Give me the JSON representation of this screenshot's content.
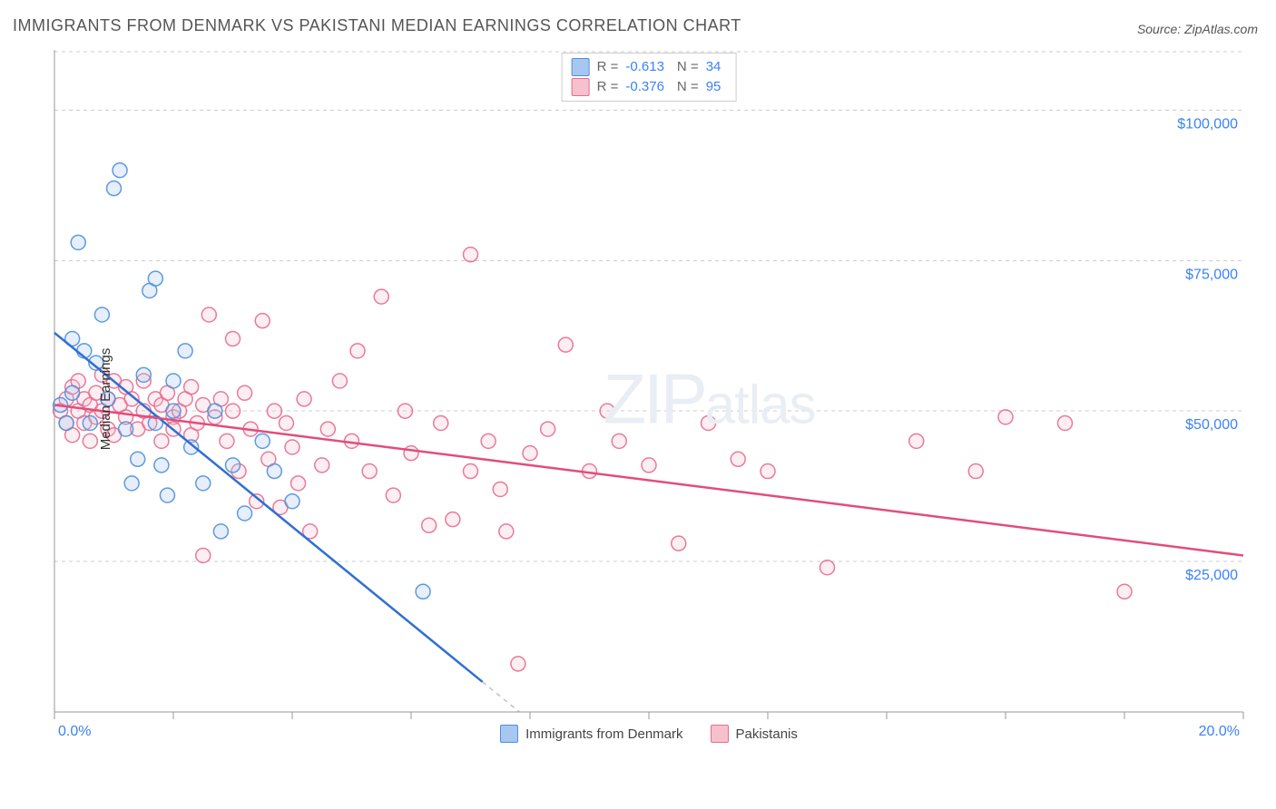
{
  "title": "IMMIGRANTS FROM DENMARK VS PAKISTANI MEDIAN EARNINGS CORRELATION CHART",
  "source": "Source: ZipAtlas.com",
  "ylabel": "Median Earnings",
  "watermark_a": "ZIP",
  "watermark_b": "atlas",
  "chart": {
    "type": "scatter",
    "xlim": [
      0,
      20
    ],
    "ylim": [
      0,
      110000
    ],
    "x_ticks": [
      0,
      2,
      4,
      6,
      8,
      10,
      12,
      14,
      16,
      18,
      20
    ],
    "y_gridlines": [
      25000,
      50000,
      75000,
      100000
    ],
    "y_tick_labels": [
      "$25,000",
      "$50,000",
      "$75,000",
      "$100,000"
    ],
    "x_start_label": "0.0%",
    "x_end_label": "20.0%",
    "background_color": "#ffffff",
    "grid_color": "#cccccc",
    "axis_color": "#999999",
    "tick_label_color": "#3b82f6",
    "marker_radius": 8,
    "series": [
      {
        "name": "Immigrants from Denmark",
        "fill": "#a7c7f0",
        "stroke": "#4d8fdd",
        "r_value": "-0.613",
        "n_value": "34",
        "trend": {
          "x1": 0,
          "y1": 63000,
          "x2": 7.2,
          "y2": 5000,
          "color": "#2f6fd1",
          "extend_to_axis": true
        },
        "points": [
          [
            0.1,
            51000
          ],
          [
            0.2,
            48000
          ],
          [
            0.3,
            53000
          ],
          [
            0.3,
            62000
          ],
          [
            0.4,
            78000
          ],
          [
            0.5,
            60000
          ],
          [
            0.6,
            48000
          ],
          [
            0.7,
            58000
          ],
          [
            0.8,
            66000
          ],
          [
            0.9,
            52000
          ],
          [
            1.0,
            87000
          ],
          [
            1.1,
            90000
          ],
          [
            1.2,
            47000
          ],
          [
            1.3,
            38000
          ],
          [
            1.4,
            42000
          ],
          [
            1.5,
            56000
          ],
          [
            1.6,
            70000
          ],
          [
            1.7,
            48000
          ],
          [
            1.7,
            72000
          ],
          [
            1.8,
            41000
          ],
          [
            1.9,
            36000
          ],
          [
            2.0,
            55000
          ],
          [
            2.0,
            50000
          ],
          [
            2.2,
            60000
          ],
          [
            2.3,
            44000
          ],
          [
            2.5,
            38000
          ],
          [
            2.7,
            50000
          ],
          [
            2.8,
            30000
          ],
          [
            3.0,
            41000
          ],
          [
            3.2,
            33000
          ],
          [
            3.5,
            45000
          ],
          [
            3.7,
            40000
          ],
          [
            4.0,
            35000
          ],
          [
            6.2,
            20000
          ]
        ]
      },
      {
        "name": "Pakistanis",
        "fill": "#f5c1cf",
        "stroke": "#e66d8e",
        "r_value": "-0.376",
        "n_value": "95",
        "trend": {
          "x1": 0,
          "y1": 51000,
          "x2": 20,
          "y2": 26000,
          "color": "#e14d7b",
          "extend_to_axis": false
        },
        "points": [
          [
            0.1,
            50000
          ],
          [
            0.2,
            52000
          ],
          [
            0.2,
            48000
          ],
          [
            0.3,
            54000
          ],
          [
            0.3,
            46000
          ],
          [
            0.4,
            55000
          ],
          [
            0.4,
            50000
          ],
          [
            0.5,
            52000
          ],
          [
            0.5,
            48000
          ],
          [
            0.6,
            51000
          ],
          [
            0.6,
            45000
          ],
          [
            0.7,
            53000
          ],
          [
            0.7,
            49000
          ],
          [
            0.8,
            50000
          ],
          [
            0.8,
            56000
          ],
          [
            0.9,
            47000
          ],
          [
            0.9,
            52000
          ],
          [
            1.0,
            55000
          ],
          [
            1.0,
            46000
          ],
          [
            1.1,
            51000
          ],
          [
            1.2,
            49000
          ],
          [
            1.2,
            54000
          ],
          [
            1.3,
            52000
          ],
          [
            1.4,
            47000
          ],
          [
            1.5,
            50000
          ],
          [
            1.5,
            55000
          ],
          [
            1.6,
            48000
          ],
          [
            1.7,
            52000
          ],
          [
            1.8,
            45000
          ],
          [
            1.8,
            51000
          ],
          [
            1.9,
            53000
          ],
          [
            2.0,
            49000
          ],
          [
            2.0,
            47000
          ],
          [
            2.1,
            50000
          ],
          [
            2.2,
            52000
          ],
          [
            2.3,
            46000
          ],
          [
            2.3,
            54000
          ],
          [
            2.4,
            48000
          ],
          [
            2.5,
            51000
          ],
          [
            2.5,
            26000
          ],
          [
            2.6,
            66000
          ],
          [
            2.7,
            49000
          ],
          [
            2.8,
            52000
          ],
          [
            2.9,
            45000
          ],
          [
            3.0,
            62000
          ],
          [
            3.0,
            50000
          ],
          [
            3.1,
            40000
          ],
          [
            3.2,
            53000
          ],
          [
            3.3,
            47000
          ],
          [
            3.4,
            35000
          ],
          [
            3.5,
            65000
          ],
          [
            3.6,
            42000
          ],
          [
            3.7,
            50000
          ],
          [
            3.8,
            34000
          ],
          [
            3.9,
            48000
          ],
          [
            4.0,
            44000
          ],
          [
            4.1,
            38000
          ],
          [
            4.2,
            52000
          ],
          [
            4.3,
            30000
          ],
          [
            4.5,
            41000
          ],
          [
            4.6,
            47000
          ],
          [
            4.8,
            55000
          ],
          [
            5.0,
            45000
          ],
          [
            5.1,
            60000
          ],
          [
            5.3,
            40000
          ],
          [
            5.5,
            69000
          ],
          [
            5.7,
            36000
          ],
          [
            5.9,
            50000
          ],
          [
            6.0,
            43000
          ],
          [
            6.3,
            31000
          ],
          [
            6.5,
            48000
          ],
          [
            6.7,
            32000
          ],
          [
            7.0,
            40000
          ],
          [
            7.0,
            76000
          ],
          [
            7.3,
            45000
          ],
          [
            7.5,
            37000
          ],
          [
            7.6,
            30000
          ],
          [
            7.8,
            8000
          ],
          [
            8.0,
            43000
          ],
          [
            8.3,
            47000
          ],
          [
            8.6,
            61000
          ],
          [
            9.0,
            40000
          ],
          [
            9.3,
            50000
          ],
          [
            9.5,
            45000
          ],
          [
            10.0,
            41000
          ],
          [
            10.5,
            28000
          ],
          [
            11.0,
            48000
          ],
          [
            11.5,
            42000
          ],
          [
            12.0,
            40000
          ],
          [
            13.0,
            24000
          ],
          [
            14.5,
            45000
          ],
          [
            15.5,
            40000
          ],
          [
            16.0,
            49000
          ],
          [
            17.0,
            48000
          ],
          [
            18.0,
            20000
          ]
        ]
      }
    ]
  },
  "stats_legend": [
    {
      "swatch_fill": "#a7c7f0",
      "swatch_stroke": "#4d8fdd"
    },
    {
      "swatch_fill": "#f5c1cf",
      "swatch_stroke": "#e66d8e"
    }
  ],
  "bottom_legend": [
    {
      "label": "Immigrants from Denmark",
      "fill": "#a7c7f0",
      "stroke": "#4d8fdd"
    },
    {
      "label": "Pakistanis",
      "fill": "#f5c1cf",
      "stroke": "#e66d8e"
    }
  ]
}
